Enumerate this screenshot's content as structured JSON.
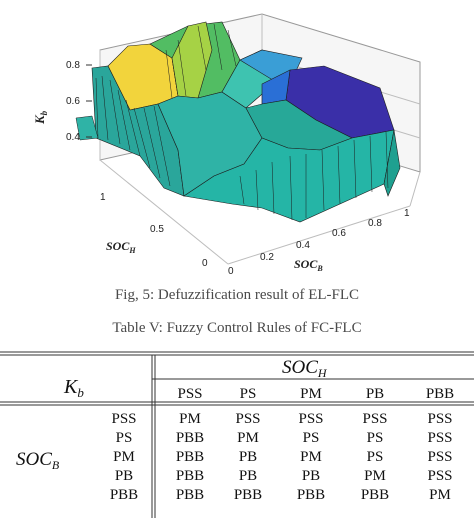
{
  "figure": {
    "z_axis_label": "K",
    "z_axis_label_sub": "b",
    "z_ticks": [
      "0.8",
      "0.6",
      "0.4"
    ],
    "h_axis_label": "SOC",
    "h_axis_label_sub": "H",
    "h_ticks": [
      "1",
      "0.5",
      "0"
    ],
    "b_axis_label": "SOC",
    "b_axis_label_sub": "B",
    "b_ticks": [
      "0",
      "0.2",
      "0.4",
      "0.6",
      "0.8",
      "1"
    ],
    "caption": "Fig, 5: Defuzzification result of EL-FLC",
    "colors": {
      "yellow": "#f6d640",
      "green": "#5cc15e",
      "teal": "#2fb3a6",
      "blue": "#2a6fd6",
      "indigo": "#3a2fa8"
    }
  },
  "table": {
    "caption": "Table V: Fuzzy Control Rules of FC-FLC",
    "corner_label": "K",
    "corner_label_sub": "b",
    "col_group_label": "SOC",
    "col_group_label_sub": "H",
    "row_group_label": "SOC",
    "row_group_label_sub": "B",
    "col_headers": [
      "PSS",
      "PS",
      "PM",
      "PB",
      "PBB"
    ],
    "rows": [
      {
        "label": "PSS",
        "cells": [
          "PM",
          "PSS",
          "PSS",
          "PSS",
          "PSS"
        ]
      },
      {
        "label": "PS",
        "cells": [
          "PBB",
          "PM",
          "PS",
          "PS",
          "PSS"
        ]
      },
      {
        "label": "PM",
        "cells": [
          "PBB",
          "PB",
          "PM",
          "PS",
          "PSS"
        ]
      },
      {
        "label": "PB",
        "cells": [
          "PBB",
          "PB",
          "PB",
          "PM",
          "PSS"
        ]
      },
      {
        "label": "PBB",
        "cells": [
          "PBB",
          "PBB",
          "PBB",
          "PBB",
          "PM"
        ]
      }
    ]
  }
}
